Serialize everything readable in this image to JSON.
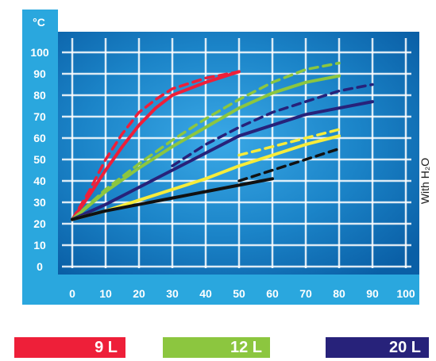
{
  "colors": {
    "frame": "#2aa7de",
    "plot_bg": "#0c6fb6",
    "plot_glow": "#2f9de0",
    "grid": "#ffffff",
    "tick_text": "#ffffff"
  },
  "chart_data": {
    "type": "line",
    "unit_label": "°C",
    "side_label": "With H₂O",
    "xlim": [
      0,
      100
    ],
    "ylim": [
      0,
      100
    ],
    "x_ticks": [
      "0",
      "10",
      "20",
      "30",
      "40",
      "50",
      "60",
      "70",
      "80",
      "90",
      "100"
    ],
    "y_ticks": [
      "0",
      "10",
      "20",
      "30",
      "40",
      "50",
      "60",
      "70",
      "80",
      "90",
      "100"
    ],
    "grid": true,
    "legend_position": "bottom",
    "series": [
      {
        "name": "9 L",
        "color": "#ee1f39",
        "style": "solid",
        "x": [
          0,
          5,
          10,
          15,
          20,
          25,
          30,
          40,
          50
        ],
        "y": [
          22,
          33,
          45,
          56,
          66,
          74,
          80,
          86,
          91
        ]
      },
      {
        "name": "",
        "color": "#ee1f39",
        "style": "dashed",
        "x": [
          0,
          5,
          10,
          15,
          20,
          25,
          30,
          40,
          50
        ],
        "y": [
          22,
          35,
          50,
          62,
          72,
          78,
          83,
          88,
          91
        ]
      },
      {
        "name": "12 L",
        "color": "#8cc63f",
        "style": "solid",
        "x": [
          0,
          10,
          20,
          30,
          40,
          50,
          60,
          70,
          80
        ],
        "y": [
          22,
          35,
          46,
          56,
          65,
          74,
          81,
          86,
          89
        ]
      },
      {
        "name": "",
        "color": "#8cc63f",
        "style": "dashed",
        "x": [
          0,
          10,
          20,
          30,
          40,
          50,
          60,
          70,
          80
        ],
        "y": [
          22,
          36,
          48,
          59,
          69,
          78,
          86,
          92,
          95
        ]
      },
      {
        "name": "20 L",
        "color": "#27227a",
        "style": "solid",
        "x": [
          0,
          10,
          20,
          30,
          40,
          50,
          60,
          70,
          80,
          90
        ],
        "y": [
          22,
          29,
          37,
          45,
          53,
          61,
          66,
          71,
          74,
          77
        ]
      },
      {
        "name": "",
        "color": "#27227a",
        "style": "dashed",
        "x": [
          30,
          40,
          50,
          60,
          70,
          80,
          90
        ],
        "y": [
          47,
          57,
          65,
          72,
          77,
          82,
          85
        ]
      },
      {
        "name": "",
        "color": "#f7ec3b",
        "style": "solid",
        "x": [
          0,
          10,
          20,
          30,
          40,
          50,
          60,
          70,
          80
        ],
        "y": [
          22,
          26,
          31,
          36,
          41,
          47,
          52,
          57,
          61
        ]
      },
      {
        "name": "",
        "color": "#f7ec3b",
        "style": "dashed",
        "x": [
          50,
          60,
          70,
          80
        ],
        "y": [
          52,
          56,
          60,
          64
        ]
      },
      {
        "name": "",
        "color": "#111111",
        "style": "solid",
        "x": [
          0,
          10,
          20,
          30,
          40,
          50,
          60
        ],
        "y": [
          22,
          26,
          29,
          32,
          35,
          38,
          41
        ]
      },
      {
        "name": "",
        "color": "#111111",
        "style": "dashed",
        "x": [
          50,
          60,
          70,
          80
        ],
        "y": [
          40,
          45,
          50,
          55
        ]
      }
    ]
  },
  "legend": [
    {
      "label": "9 L",
      "color": "#ee1f39"
    },
    {
      "label": "12 L",
      "color": "#8cc63f"
    },
    {
      "label": "20 L",
      "color": "#27227a"
    }
  ]
}
